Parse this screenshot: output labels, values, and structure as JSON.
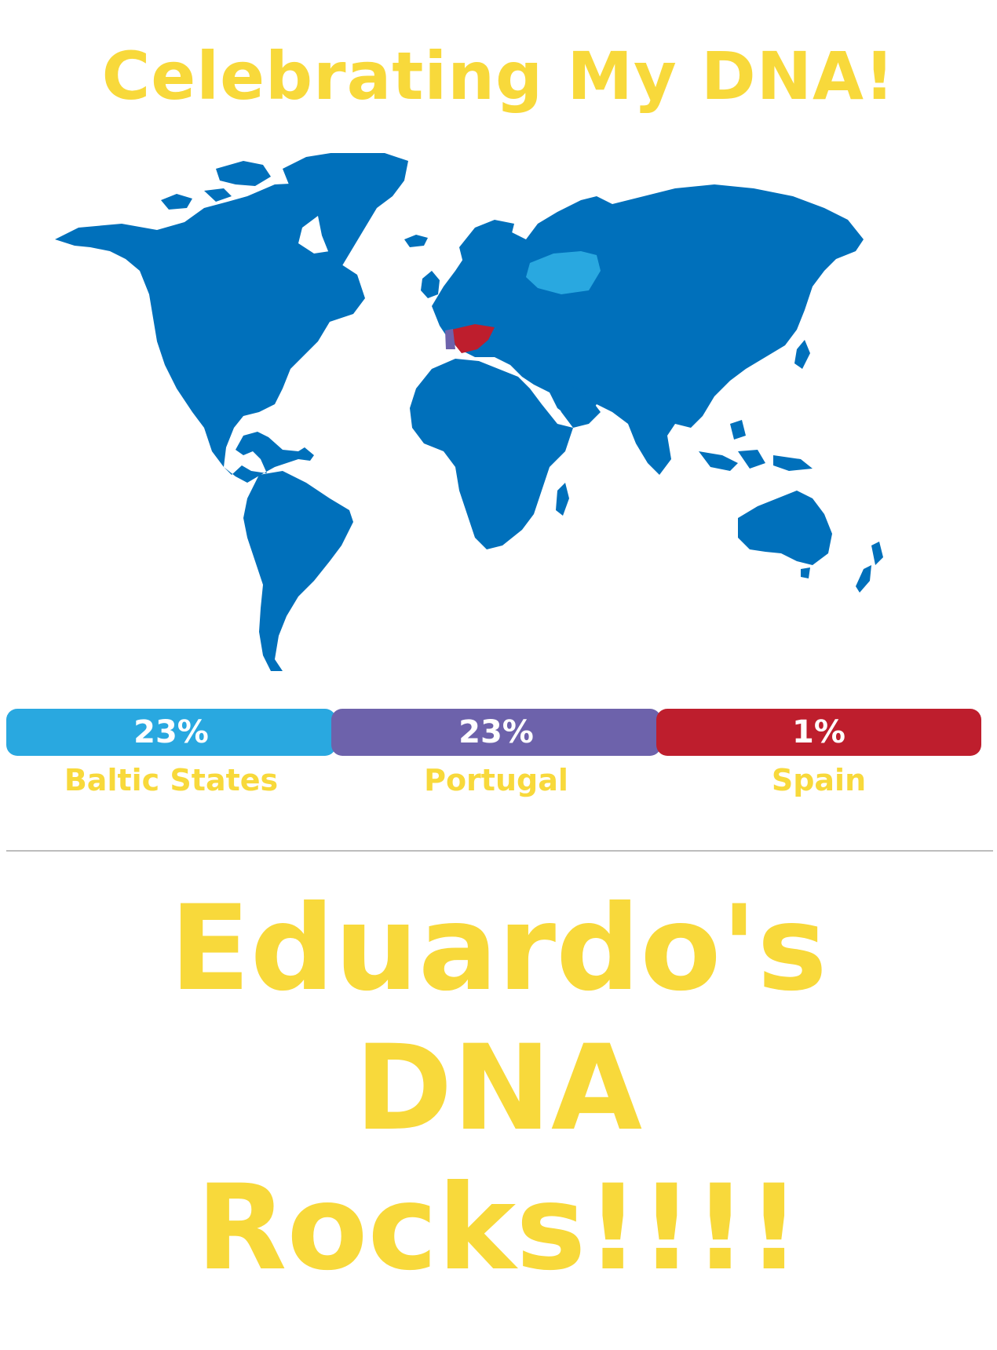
{
  "title": "Celebrating My DNA!",
  "colors": {
    "yellow": "#f8d93b",
    "map_blue": "#0070bb",
    "baltic": "#29a8e0",
    "portugal": "#6d62ab",
    "spain": "#be1e2d",
    "divider": "#bdbdbd"
  },
  "map": {
    "highlights": [
      {
        "region": "Baltic States",
        "color": "#29a8e0"
      },
      {
        "region": "Portugal",
        "color": "#6d62ab"
      },
      {
        "region": "Spain",
        "color": "#be1e2d"
      }
    ]
  },
  "ancestry": [
    {
      "percent": "23%",
      "label": "Baltic States",
      "color": "#29a8e0"
    },
    {
      "percent": "23%",
      "label": "Portugal",
      "color": "#6d62ab"
    },
    {
      "percent": "1%",
      "label": "Spain",
      "color": "#be1e2d"
    }
  ],
  "message": {
    "line1": "Eduardo's",
    "line2": "DNA",
    "line3": "Rocks!!!!"
  }
}
